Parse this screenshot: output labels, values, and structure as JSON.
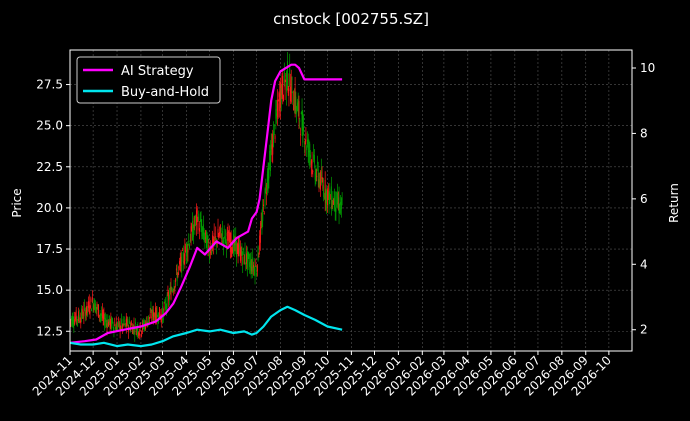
{
  "chart_data": {
    "type": "line",
    "title": "cnstock [002755.SZ]",
    "xlabel": "",
    "ylabel_left": "Price",
    "ylabel_right": "Return",
    "grid": true,
    "legend_placement": "top-left",
    "colors": {
      "background": "#000000",
      "grid": "#555555",
      "ai_strategy": "#ff00ff",
      "buy_and_hold": "#00e5ee",
      "candle_up": "#ff1a1a",
      "candle_down": "#00a000"
    },
    "x_ticks": [
      "2024-11",
      "2024-12",
      "2025-01",
      "2025-02",
      "2025-03",
      "2025-04",
      "2025-05",
      "2025-06",
      "2025-07",
      "2025-08",
      "2025-09",
      "2025-10",
      "2025-11",
      "2025-12",
      "2026-01",
      "2026-02",
      "2026-03",
      "2026-04",
      "2026-05",
      "2026-06",
      "2026-07",
      "2026-08",
      "2026-09",
      "2026-10"
    ],
    "xlim": [
      "2024-11-01",
      "2026-10-31"
    ],
    "ylim_left": [
      11.3,
      29.6
    ],
    "ylim_right": [
      1.35,
      10.55
    ],
    "y_ticks_left": [
      "12.5",
      "15.0",
      "17.5",
      "20.0",
      "22.5",
      "25.0",
      "27.5"
    ],
    "y_ticks_right": [
      "2",
      "4",
      "6",
      "8",
      "10"
    ],
    "series": [
      {
        "name": "AI Strategy",
        "axis": "right",
        "x": [
          "2024-11-01",
          "2024-11-20",
          "2024-12-05",
          "2024-12-20",
          "2025-01-10",
          "2025-02-01",
          "2025-02-20",
          "2025-03-05",
          "2025-03-15",
          "2025-03-25",
          "2025-04-05",
          "2025-04-15",
          "2025-04-25",
          "2025-05-10",
          "2025-05-25",
          "2025-06-05",
          "2025-06-20",
          "2025-06-25",
          "2025-07-01",
          "2025-07-05",
          "2025-07-10",
          "2025-07-15",
          "2025-07-20",
          "2025-07-25",
          "2025-08-01",
          "2025-08-08",
          "2025-08-15",
          "2025-08-20",
          "2025-08-25",
          "2025-09-01",
          "2025-09-10",
          "2025-10-01",
          "2025-10-20"
        ],
        "values": [
          1.6,
          1.65,
          1.7,
          1.9,
          2.0,
          2.1,
          2.25,
          2.5,
          2.8,
          3.3,
          3.9,
          4.5,
          4.3,
          4.7,
          4.5,
          4.8,
          5.0,
          5.4,
          5.6,
          6.0,
          7.0,
          8.0,
          9.0,
          9.6,
          9.9,
          10.0,
          10.1,
          10.1,
          10.0,
          9.65,
          9.65,
          9.65,
          9.65
        ]
      },
      {
        "name": "Buy-and-Hold",
        "axis": "right",
        "x": [
          "2024-11-01",
          "2024-11-15",
          "2024-12-01",
          "2024-12-15",
          "2025-01-01",
          "2025-01-15",
          "2025-02-01",
          "2025-02-15",
          "2025-03-01",
          "2025-03-15",
          "2025-04-01",
          "2025-04-15",
          "2025-05-01",
          "2025-05-15",
          "2025-06-01",
          "2025-06-15",
          "2025-06-25",
          "2025-07-01",
          "2025-07-10",
          "2025-07-20",
          "2025-08-01",
          "2025-08-10",
          "2025-08-20",
          "2025-09-01",
          "2025-09-15",
          "2025-10-01",
          "2025-10-20"
        ],
        "values": [
          1.6,
          1.55,
          1.55,
          1.6,
          1.5,
          1.55,
          1.5,
          1.55,
          1.65,
          1.8,
          1.9,
          2.0,
          1.95,
          2.0,
          1.9,
          1.95,
          1.85,
          1.9,
          2.1,
          2.4,
          2.6,
          2.7,
          2.6,
          2.45,
          2.3,
          2.1,
          2.0
        ]
      },
      {
        "name": "Price",
        "type": "candlestick",
        "axis": "left",
        "x": [
          "2024-11-01",
          "2024-11-15",
          "2024-12-01",
          "2024-12-15",
          "2025-01-01",
          "2025-01-15",
          "2025-02-01",
          "2025-02-15",
          "2025-03-01",
          "2025-03-15",
          "2025-04-01",
          "2025-04-15",
          "2025-05-01",
          "2025-05-15",
          "2025-06-01",
          "2025-06-15",
          "2025-07-01",
          "2025-07-15",
          "2025-08-01",
          "2025-08-10",
          "2025-08-20",
          "2025-09-01",
          "2025-09-15",
          "2025-10-01",
          "2025-10-20"
        ],
        "values": [
          13.2,
          13.4,
          14.3,
          13.2,
          12.8,
          12.9,
          12.6,
          13.5,
          13.5,
          15.3,
          17.5,
          19.4,
          17.5,
          18.4,
          17.8,
          17.0,
          16.3,
          21.8,
          27.0,
          28.0,
          26.5,
          24.5,
          22.3,
          20.8,
          20.0
        ]
      }
    ]
  }
}
